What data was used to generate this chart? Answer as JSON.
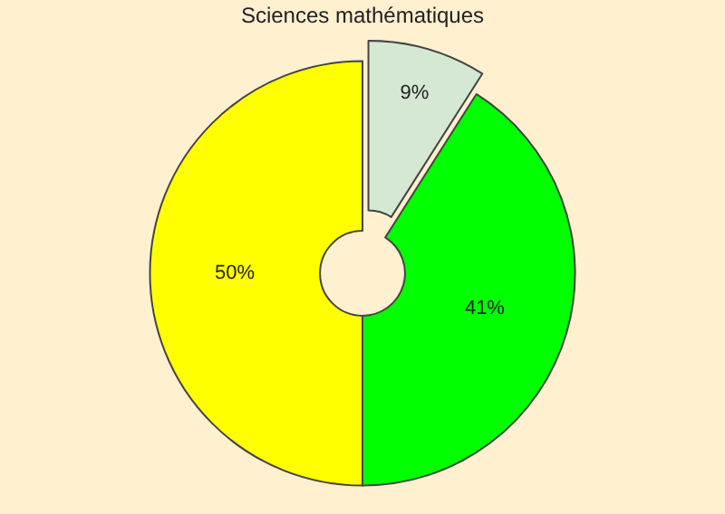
{
  "chart_data": {
    "type": "donut",
    "title": "Sciences mathématiques",
    "categories": [
      null,
      null,
      null
    ],
    "values": [
      9,
      41,
      50
    ],
    "colors": [
      "#d5e8d4",
      "#00ff00",
      "#ffff00"
    ],
    "value_labels": [
      "9%",
      "41%",
      "50%"
    ],
    "legend": false
  }
}
